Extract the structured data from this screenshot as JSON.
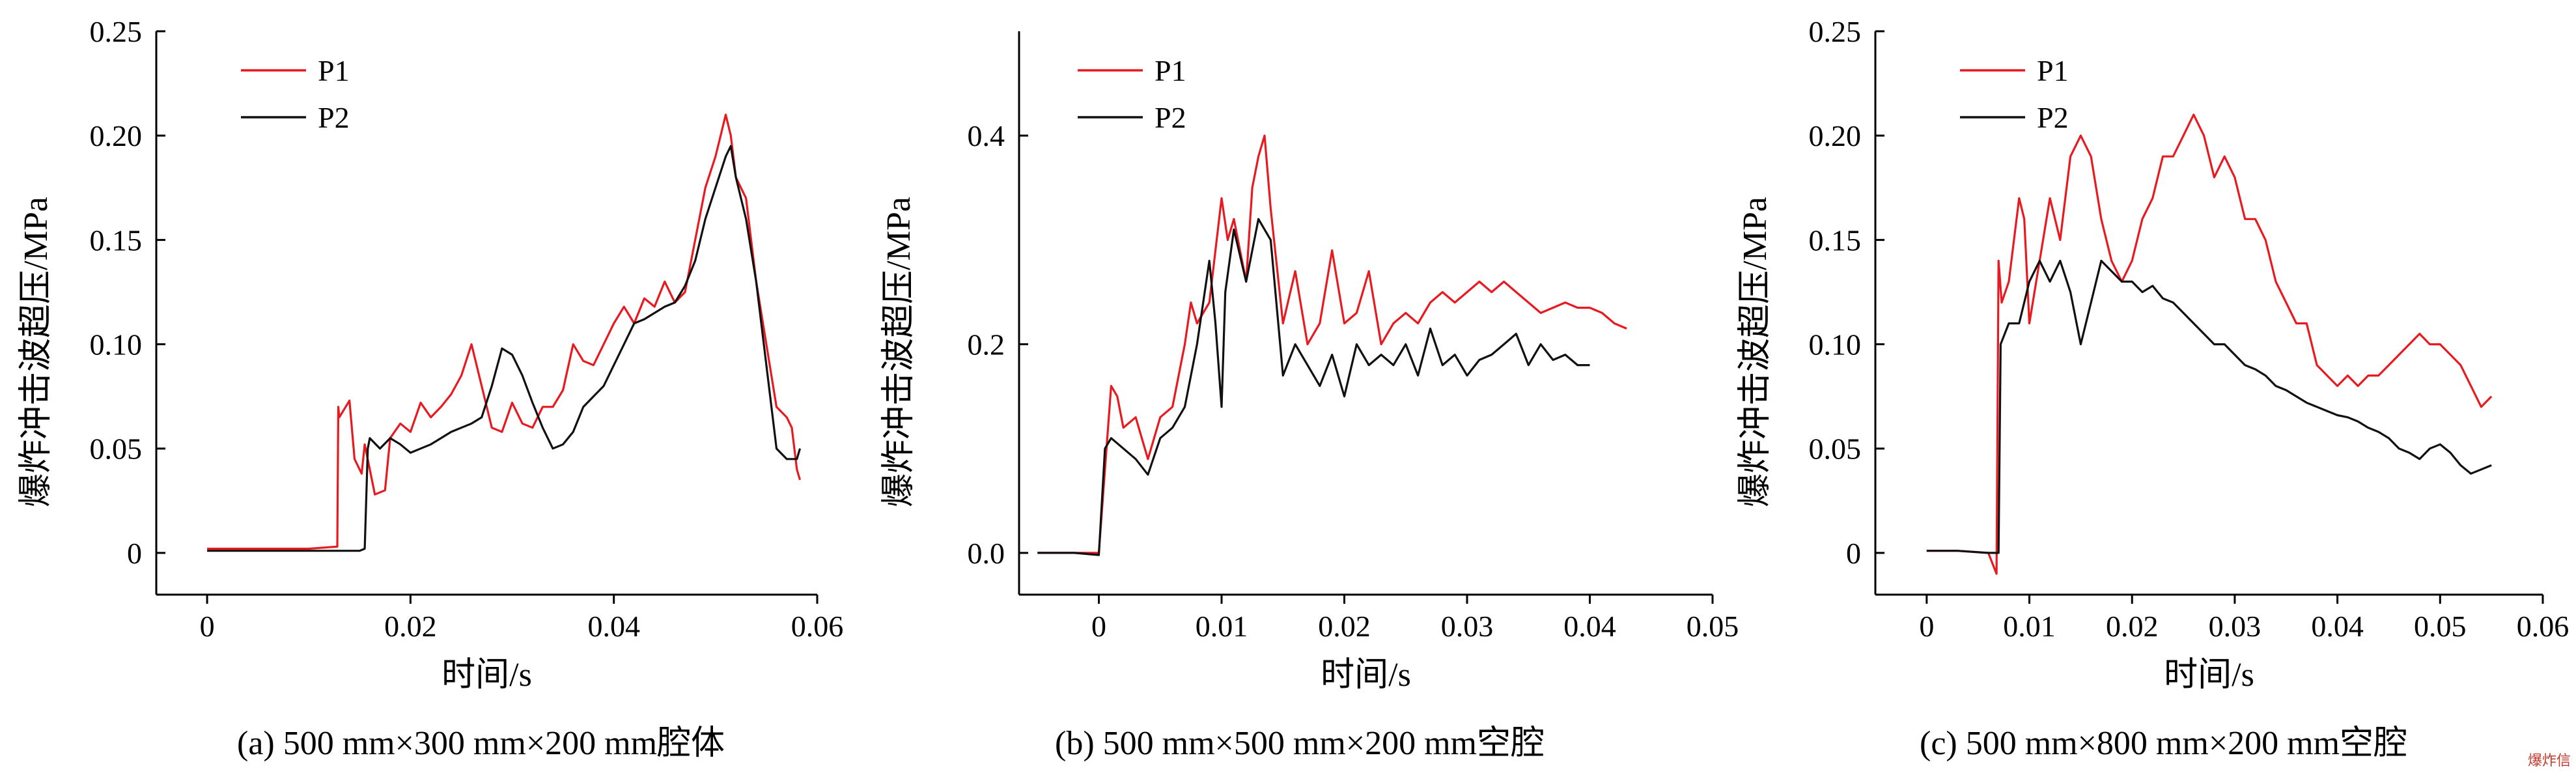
{
  "chart_data": [
    {
      "type": "line",
      "caption": "(a) 500 mm×300 mm×200 mm腔体",
      "xlabel": "时间/s",
      "ylabel": "爆炸冲击波超压/MPa",
      "xlim": [
        -0.005,
        0.06
      ],
      "ylim": [
        -0.02,
        0.25
      ],
      "xticks": [
        0,
        0.02,
        0.04,
        0.06
      ],
      "xtick_labels": [
        "0",
        "0.02",
        "0.04",
        "0.06"
      ],
      "yticks": [
        0,
        0.05,
        0.1,
        0.15,
        0.2,
        0.25
      ],
      "ytick_labels": [
        "0",
        "0.05",
        "0.10",
        "0.15",
        "0.20",
        "0.25"
      ],
      "legend_position": "top-left",
      "series": [
        {
          "name": "P1",
          "color": "#e8191f",
          "x": [
            0,
            0.005,
            0.01,
            0.0128,
            0.0129,
            0.013,
            0.014,
            0.0145,
            0.0152,
            0.0155,
            0.0165,
            0.0175,
            0.018,
            0.019,
            0.02,
            0.021,
            0.022,
            0.023,
            0.024,
            0.025,
            0.026,
            0.027,
            0.028,
            0.029,
            0.03,
            0.031,
            0.032,
            0.033,
            0.034,
            0.035,
            0.036,
            0.037,
            0.038,
            0.039,
            0.04,
            0.041,
            0.042,
            0.043,
            0.044,
            0.045,
            0.046,
            0.047,
            0.048,
            0.049,
            0.05,
            0.0505,
            0.051,
            0.0515,
            0.052,
            0.053,
            0.054,
            0.055,
            0.056,
            0.057,
            0.0575,
            0.058,
            0.0583
          ],
          "y": [
            0.002,
            0.002,
            0.002,
            0.003,
            0.07,
            0.065,
            0.073,
            0.045,
            0.038,
            0.052,
            0.028,
            0.03,
            0.055,
            0.062,
            0.058,
            0.072,
            0.065,
            0.07,
            0.076,
            0.085,
            0.1,
            0.08,
            0.06,
            0.058,
            0.072,
            0.062,
            0.06,
            0.07,
            0.07,
            0.078,
            0.1,
            0.092,
            0.09,
            0.1,
            0.11,
            0.118,
            0.11,
            0.122,
            0.118,
            0.13,
            0.12,
            0.125,
            0.15,
            0.175,
            0.19,
            0.2,
            0.21,
            0.2,
            0.18,
            0.17,
            0.13,
            0.1,
            0.07,
            0.065,
            0.06,
            0.04,
            0.035
          ]
        },
        {
          "name": "P2",
          "color": "#111111",
          "x": [
            0,
            0.005,
            0.01,
            0.015,
            0.0155,
            0.0158,
            0.016,
            0.017,
            0.018,
            0.019,
            0.02,
            0.021,
            0.022,
            0.023,
            0.024,
            0.025,
            0.026,
            0.027,
            0.028,
            0.029,
            0.03,
            0.031,
            0.032,
            0.033,
            0.034,
            0.035,
            0.036,
            0.037,
            0.038,
            0.039,
            0.04,
            0.041,
            0.042,
            0.043,
            0.044,
            0.045,
            0.046,
            0.047,
            0.048,
            0.049,
            0.05,
            0.051,
            0.0515,
            0.052,
            0.053,
            0.054,
            0.055,
            0.056,
            0.057,
            0.058,
            0.0583
          ],
          "y": [
            0.001,
            0.001,
            0.001,
            0.001,
            0.002,
            0.05,
            0.055,
            0.05,
            0.055,
            0.052,
            0.048,
            0.05,
            0.052,
            0.055,
            0.058,
            0.06,
            0.062,
            0.065,
            0.08,
            0.098,
            0.095,
            0.085,
            0.072,
            0.06,
            0.05,
            0.052,
            0.058,
            0.07,
            0.075,
            0.08,
            0.09,
            0.1,
            0.11,
            0.112,
            0.115,
            0.118,
            0.12,
            0.128,
            0.14,
            0.16,
            0.175,
            0.19,
            0.195,
            0.18,
            0.16,
            0.13,
            0.09,
            0.05,
            0.045,
            0.045,
            0.05
          ]
        }
      ]
    },
    {
      "type": "line",
      "caption": "(b) 500 mm×500 mm×200 mm空腔",
      "xlabel": "时间/s",
      "ylabel": "爆炸冲击波超压/MPa",
      "xlim": [
        -0.0065,
        0.05
      ],
      "ylim": [
        -0.04,
        0.5
      ],
      "xticks": [
        0,
        0.01,
        0.02,
        0.03,
        0.04,
        0.05
      ],
      "xtick_labels": [
        "0",
        "0.01",
        "0.02",
        "0.03",
        "0.04",
        "0.05"
      ],
      "yticks": [
        0,
        0.2,
        0.4
      ],
      "ytick_labels": [
        "0.0",
        "0.2",
        "0.4"
      ],
      "legend_position": "top-left",
      "series": [
        {
          "name": "P1",
          "color": "#e8191f",
          "x": [
            -0.005,
            -0.002,
            0,
            0.0005,
            0.001,
            0.0015,
            0.002,
            0.003,
            0.004,
            0.005,
            0.006,
            0.007,
            0.0075,
            0.008,
            0.009,
            0.01,
            0.0105,
            0.011,
            0.012,
            0.0125,
            0.013,
            0.0135,
            0.014,
            0.015,
            0.016,
            0.017,
            0.018,
            0.019,
            0.02,
            0.021,
            0.022,
            0.023,
            0.024,
            0.025,
            0.026,
            0.027,
            0.028,
            0.029,
            0.03,
            0.031,
            0.032,
            0.033,
            0.034,
            0.035,
            0.036,
            0.037,
            0.038,
            0.039,
            0.04,
            0.041,
            0.042,
            0.043
          ],
          "y": [
            0,
            0,
            0,
            0.08,
            0.16,
            0.15,
            0.12,
            0.13,
            0.09,
            0.13,
            0.14,
            0.2,
            0.24,
            0.22,
            0.24,
            0.34,
            0.3,
            0.32,
            0.26,
            0.35,
            0.38,
            0.4,
            0.33,
            0.22,
            0.27,
            0.2,
            0.22,
            0.29,
            0.22,
            0.23,
            0.27,
            0.2,
            0.22,
            0.23,
            0.22,
            0.24,
            0.25,
            0.24,
            0.25,
            0.26,
            0.25,
            0.26,
            0.25,
            0.24,
            0.23,
            0.235,
            0.24,
            0.235,
            0.235,
            0.23,
            0.22,
            0.215
          ]
        },
        {
          "name": "P2",
          "color": "#111111",
          "x": [
            -0.005,
            -0.002,
            0,
            0.0005,
            0.001,
            0.002,
            0.003,
            0.004,
            0.005,
            0.006,
            0.007,
            0.008,
            0.009,
            0.0095,
            0.01,
            0.0103,
            0.011,
            0.012,
            0.013,
            0.014,
            0.015,
            0.016,
            0.017,
            0.018,
            0.019,
            0.02,
            0.021,
            0.022,
            0.023,
            0.024,
            0.025,
            0.026,
            0.027,
            0.028,
            0.029,
            0.03,
            0.031,
            0.032,
            0.033,
            0.034,
            0.035,
            0.036,
            0.037,
            0.038,
            0.039,
            0.04
          ],
          "y": [
            0,
            0,
            -0.002,
            0.1,
            0.11,
            0.1,
            0.09,
            0.075,
            0.11,
            0.12,
            0.14,
            0.2,
            0.28,
            0.22,
            0.14,
            0.25,
            0.31,
            0.26,
            0.32,
            0.3,
            0.17,
            0.2,
            0.18,
            0.16,
            0.19,
            0.15,
            0.2,
            0.18,
            0.19,
            0.18,
            0.2,
            0.17,
            0.215,
            0.18,
            0.19,
            0.17,
            0.185,
            0.19,
            0.2,
            0.21,
            0.18,
            0.2,
            0.185,
            0.19,
            0.18,
            0.18
          ]
        }
      ]
    },
    {
      "type": "line",
      "caption": "(c) 500 mm×800 mm×200 mm空腔",
      "xlabel": "时间/s",
      "ylabel": "爆炸冲击波超压/MPa",
      "xlim": [
        -0.005,
        0.06
      ],
      "ylim": [
        -0.02,
        0.25
      ],
      "xticks": [
        0,
        0.01,
        0.02,
        0.03,
        0.04,
        0.05,
        0.06
      ],
      "xtick_labels": [
        "0",
        "0.01",
        "0.02",
        "0.03",
        "0.04",
        "0.05",
        "0.06"
      ],
      "yticks": [
        0,
        0.05,
        0.1,
        0.15,
        0.2,
        0.25
      ],
      "ytick_labels": [
        "0",
        "0.05",
        "0.10",
        "0.15",
        "0.20",
        "0.25"
      ],
      "legend_position": "top-left",
      "series": [
        {
          "name": "P1",
          "color": "#e8191f",
          "x": [
            0,
            0.003,
            0.006,
            0.0068,
            0.007,
            0.0073,
            0.008,
            0.009,
            0.0095,
            0.01,
            0.011,
            0.012,
            0.013,
            0.014,
            0.015,
            0.016,
            0.017,
            0.018,
            0.019,
            0.02,
            0.021,
            0.022,
            0.023,
            0.024,
            0.025,
            0.026,
            0.027,
            0.028,
            0.029,
            0.03,
            0.031,
            0.032,
            0.033,
            0.034,
            0.035,
            0.036,
            0.037,
            0.038,
            0.039,
            0.04,
            0.041,
            0.042,
            0.043,
            0.044,
            0.045,
            0.046,
            0.047,
            0.048,
            0.049,
            0.05,
            0.051,
            0.052,
            0.053,
            0.054,
            0.055
          ],
          "y": [
            0.001,
            0.001,
            0.0,
            -0.01,
            0.14,
            0.12,
            0.13,
            0.17,
            0.16,
            0.11,
            0.14,
            0.17,
            0.15,
            0.19,
            0.2,
            0.19,
            0.16,
            0.14,
            0.13,
            0.14,
            0.16,
            0.17,
            0.19,
            0.19,
            0.2,
            0.21,
            0.2,
            0.18,
            0.19,
            0.18,
            0.16,
            0.16,
            0.15,
            0.13,
            0.12,
            0.11,
            0.11,
            0.09,
            0.085,
            0.08,
            0.085,
            0.08,
            0.085,
            0.085,
            0.09,
            0.095,
            0.1,
            0.105,
            0.1,
            0.1,
            0.095,
            0.09,
            0.08,
            0.07,
            0.075
          ]
        },
        {
          "name": "P2",
          "color": "#111111",
          "x": [
            0,
            0.003,
            0.006,
            0.007,
            0.0072,
            0.008,
            0.009,
            0.01,
            0.011,
            0.012,
            0.013,
            0.014,
            0.015,
            0.016,
            0.017,
            0.018,
            0.019,
            0.02,
            0.021,
            0.022,
            0.023,
            0.024,
            0.025,
            0.026,
            0.027,
            0.028,
            0.029,
            0.03,
            0.031,
            0.032,
            0.033,
            0.034,
            0.035,
            0.036,
            0.037,
            0.038,
            0.039,
            0.04,
            0.041,
            0.042,
            0.043,
            0.044,
            0.045,
            0.046,
            0.047,
            0.048,
            0.049,
            0.05,
            0.051,
            0.052,
            0.053,
            0.054,
            0.055
          ],
          "y": [
            0.001,
            0.001,
            0.0,
            0.0,
            0.1,
            0.11,
            0.11,
            0.13,
            0.14,
            0.13,
            0.14,
            0.125,
            0.1,
            0.12,
            0.14,
            0.135,
            0.13,
            0.13,
            0.125,
            0.128,
            0.122,
            0.12,
            0.115,
            0.11,
            0.105,
            0.1,
            0.1,
            0.095,
            0.09,
            0.088,
            0.085,
            0.08,
            0.078,
            0.075,
            0.072,
            0.07,
            0.068,
            0.066,
            0.065,
            0.063,
            0.06,
            0.058,
            0.055,
            0.05,
            0.048,
            0.045,
            0.05,
            0.052,
            0.048,
            0.042,
            0.038,
            0.04,
            0.042
          ]
        }
      ]
    }
  ],
  "watermark": "爆炸信"
}
